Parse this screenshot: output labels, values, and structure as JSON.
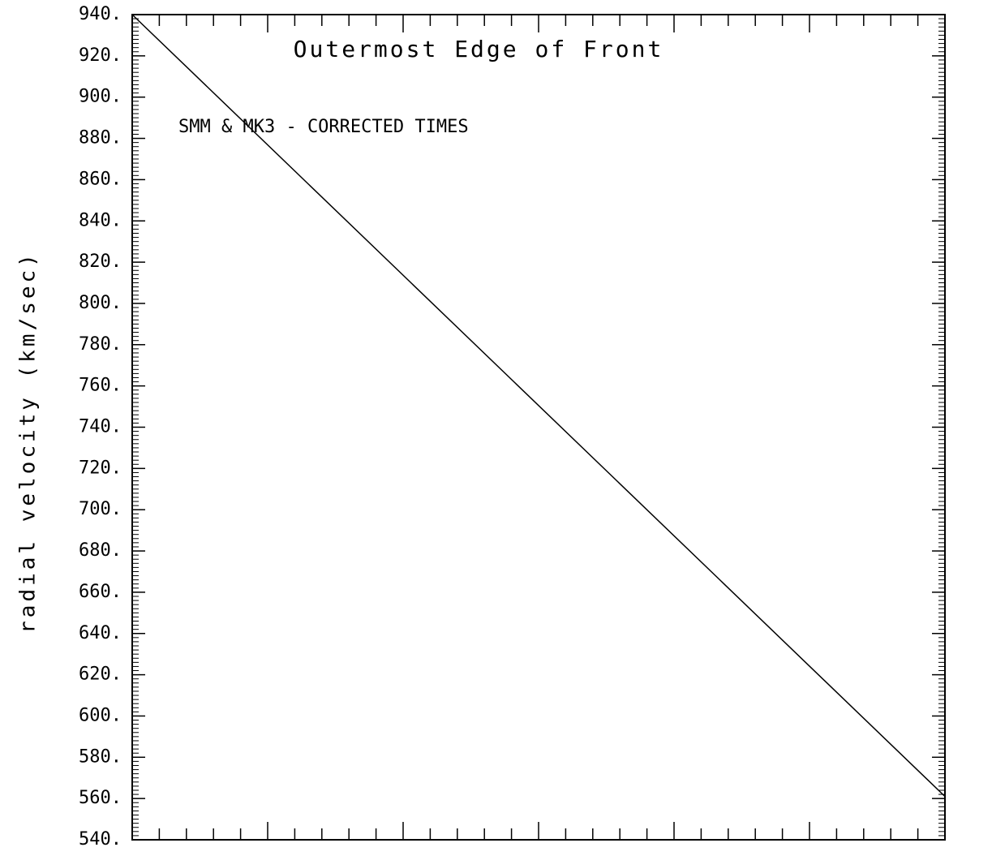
{
  "chart_data": {
    "type": "line",
    "title": "Outermost Edge of Front",
    "annotations": [
      "SMM & MK3 - CORRECTED TIMES"
    ],
    "y_label": "radial velocity (km/sec)",
    "series": [
      {
        "name": "Outermost Edge of Front",
        "color": "#000000",
        "values": [
          940,
          561
        ]
      }
    ],
    "ylim": [
      540,
      940
    ],
    "yticks": [
      {
        "value": 540,
        "label": "540."
      },
      {
        "value": 560,
        "label": "560."
      },
      {
        "value": 580,
        "label": "580."
      },
      {
        "value": 600,
        "label": "600."
      },
      {
        "value": 620,
        "label": "620."
      },
      {
        "value": 640,
        "label": "640."
      },
      {
        "value": 660,
        "label": "660."
      },
      {
        "value": 680,
        "label": "680."
      },
      {
        "value": 700,
        "label": "700."
      },
      {
        "value": 720,
        "label": "720."
      },
      {
        "value": 740,
        "label": "740."
      },
      {
        "value": 760,
        "label": "760."
      },
      {
        "value": 780,
        "label": "780."
      },
      {
        "value": 800,
        "label": "800."
      },
      {
        "value": 820,
        "label": "820."
      },
      {
        "value": 840,
        "label": "840."
      },
      {
        "value": 860,
        "label": "860."
      },
      {
        "value": 880,
        "label": "880."
      },
      {
        "value": 900,
        "label": "900."
      },
      {
        "value": 920,
        "label": "920."
      },
      {
        "value": 940,
        "label": "940."
      }
    ]
  }
}
